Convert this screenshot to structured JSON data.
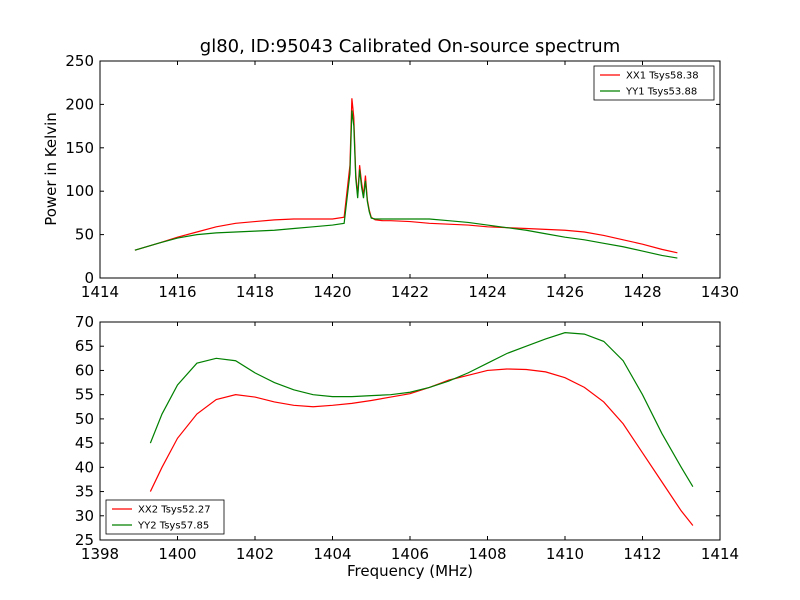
{
  "chart_data": [
    {
      "type": "line",
      "title": "gl80, ID:95043 Calibrated On-source spectrum",
      "xlabel": "",
      "ylabel": "Power in Kelvin",
      "xlim": [
        1414,
        1430
      ],
      "ylim": [
        0,
        250
      ],
      "xticks": [
        1414,
        1416,
        1418,
        1420,
        1422,
        1424,
        1426,
        1428,
        1430
      ],
      "yticks": [
        0,
        50,
        100,
        150,
        200,
        250
      ],
      "legend": "top-right",
      "grid": false,
      "series": [
        {
          "name": "XX1 Tsys58.38",
          "color": "#ff0000",
          "x": [
            1414.9,
            1415.5,
            1416.0,
            1416.5,
            1417.0,
            1417.5,
            1418.0,
            1418.5,
            1419.0,
            1419.5,
            1420.0,
            1420.3,
            1420.45,
            1420.5,
            1420.55,
            1420.6,
            1420.65,
            1420.7,
            1420.75,
            1420.8,
            1420.85,
            1420.9,
            1420.95,
            1421.0,
            1421.1,
            1421.3,
            1421.5,
            1422.0,
            1422.5,
            1423.0,
            1423.5,
            1424.0,
            1424.5,
            1425.0,
            1425.5,
            1426.0,
            1426.5,
            1427.0,
            1427.5,
            1428.0,
            1428.5,
            1428.9
          ],
          "values": [
            32,
            40,
            47,
            53,
            59,
            63,
            65,
            67,
            68,
            68,
            68,
            70,
            130,
            207,
            185,
            120,
            95,
            130,
            110,
            95,
            118,
            90,
            78,
            70,
            67,
            66,
            66,
            65,
            63,
            62,
            61,
            59,
            58,
            57,
            56,
            55,
            53,
            49,
            44,
            39,
            33,
            29
          ]
        },
        {
          "name": "YY1 Tsys53.88",
          "color": "#008000",
          "x": [
            1414.9,
            1415.5,
            1416.0,
            1416.5,
            1417.0,
            1417.5,
            1418.0,
            1418.5,
            1419.0,
            1419.5,
            1420.0,
            1420.3,
            1420.45,
            1420.5,
            1420.55,
            1420.6,
            1420.65,
            1420.7,
            1420.75,
            1420.8,
            1420.85,
            1420.9,
            1420.95,
            1421.0,
            1421.1,
            1421.3,
            1421.5,
            1422.0,
            1422.5,
            1423.0,
            1423.5,
            1424.0,
            1424.5,
            1425.0,
            1425.5,
            1426.0,
            1426.5,
            1427.0,
            1427.5,
            1428.0,
            1428.5,
            1428.9
          ],
          "values": [
            32,
            40,
            46,
            50,
            52,
            53,
            54,
            55,
            57,
            59,
            61,
            63,
            120,
            193,
            175,
            115,
            92,
            125,
            105,
            92,
            112,
            88,
            76,
            69,
            68,
            68,
            68,
            68,
            68,
            66,
            64,
            61,
            58,
            55,
            51,
            47,
            44,
            40,
            36,
            31,
            26,
            23
          ]
        }
      ]
    },
    {
      "type": "line",
      "title": "",
      "xlabel": "Frequency (MHz)",
      "ylabel": "",
      "xlim": [
        1398,
        1414
      ],
      "ylim": [
        25,
        70
      ],
      "xticks": [
        1398,
        1400,
        1402,
        1404,
        1406,
        1408,
        1410,
        1412,
        1414
      ],
      "yticks": [
        25,
        30,
        35,
        40,
        45,
        50,
        55,
        60,
        65,
        70
      ],
      "legend": "bottom-left",
      "grid": false,
      "series": [
        {
          "name": "XX2 Tsys52.27",
          "color": "#ff0000",
          "x": [
            1399.3,
            1399.6,
            1400.0,
            1400.5,
            1401.0,
            1401.5,
            1402.0,
            1402.5,
            1403.0,
            1403.5,
            1404.0,
            1404.5,
            1405.0,
            1405.5,
            1406.0,
            1406.5,
            1407.0,
            1407.5,
            1408.0,
            1408.5,
            1409.0,
            1409.5,
            1410.0,
            1410.5,
            1411.0,
            1411.5,
            1412.0,
            1412.5,
            1413.0,
            1413.3
          ],
          "values": [
            35,
            40,
            46,
            51,
            54,
            55,
            54.5,
            53.5,
            52.8,
            52.5,
            52.8,
            53.2,
            53.8,
            54.5,
            55.2,
            56.5,
            58,
            59,
            60,
            60.3,
            60.2,
            59.7,
            58.5,
            56.5,
            53.5,
            49,
            43,
            37,
            31,
            28
          ]
        },
        {
          "name": "YY2 Tsys57.85",
          "color": "#008000",
          "x": [
            1399.3,
            1399.6,
            1400.0,
            1400.5,
            1401.0,
            1401.5,
            1402.0,
            1402.5,
            1403.0,
            1403.5,
            1404.0,
            1404.5,
            1405.0,
            1405.5,
            1406.0,
            1406.5,
            1407.0,
            1407.5,
            1408.0,
            1408.5,
            1409.0,
            1409.5,
            1410.0,
            1410.5,
            1411.0,
            1411.5,
            1412.0,
            1412.5,
            1413.0,
            1413.3
          ],
          "values": [
            45,
            51,
            57,
            61.5,
            62.5,
            62,
            59.5,
            57.5,
            56,
            55,
            54.6,
            54.6,
            54.8,
            55,
            55.5,
            56.5,
            57.8,
            59.5,
            61.5,
            63.5,
            65,
            66.5,
            67.8,
            67.5,
            66,
            62,
            55,
            47,
            40,
            36
          ]
        }
      ]
    }
  ]
}
